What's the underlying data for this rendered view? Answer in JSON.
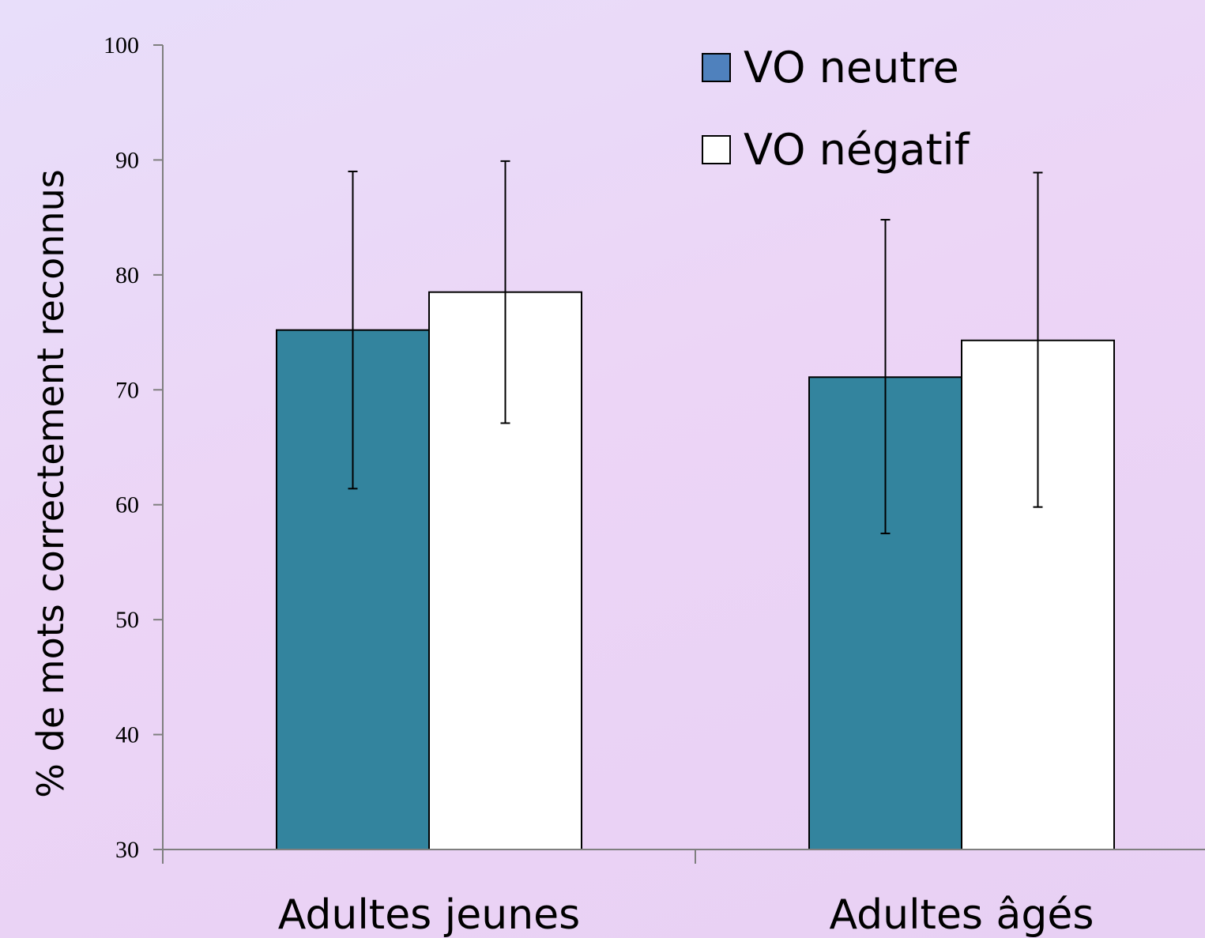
{
  "chart_data": {
    "type": "bar",
    "title": "",
    "xlabel": "",
    "ylabel": "% de mots correctement reconnus",
    "ylim": [
      30,
      100
    ],
    "yticks": [
      30,
      40,
      50,
      60,
      70,
      80,
      90,
      100
    ],
    "categories": [
      "Adultes jeunes",
      "Adultes âgés"
    ],
    "series": [
      {
        "name": "VO neutre",
        "values": [
          75.2,
          71.1
        ],
        "error_low": [
          61.4,
          57.5
        ],
        "error_high": [
          89.0,
          84.8
        ],
        "color": "#33849e",
        "legend_color": "#4f81bd"
      },
      {
        "name": "VO négatif",
        "values": [
          78.5,
          74.3
        ],
        "error_low": [
          67.1,
          59.8
        ],
        "error_high": [
          89.9,
          88.9
        ],
        "color": "#ffffff",
        "legend_color": "#ffffff"
      }
    ],
    "legend": "top-right",
    "grid": false
  }
}
